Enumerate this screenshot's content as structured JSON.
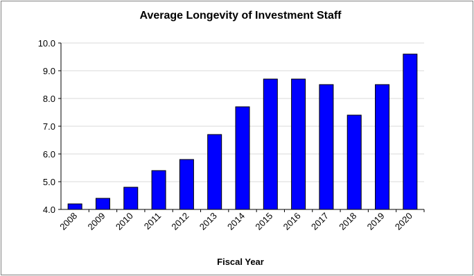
{
  "chart_data": {
    "type": "bar",
    "title": "Average Longevity of Investment Staff",
    "xlabel": "Fiscal Year",
    "ylabel": "",
    "categories": [
      "2008",
      "2009",
      "2010",
      "2011",
      "2012",
      "2013",
      "2014",
      "2015",
      "2016",
      "2017",
      "2018",
      "2019",
      "2020"
    ],
    "values": [
      4.2,
      4.4,
      4.8,
      5.4,
      5.8,
      6.7,
      7.7,
      8.7,
      8.7,
      8.5,
      7.4,
      8.5,
      9.6
    ],
    "ylim": [
      4.0,
      10.0
    ],
    "yticks": [
      "4.0",
      "5.0",
      "6.0",
      "7.0",
      "8.0",
      "9.0",
      "10.0"
    ],
    "grid": true,
    "legend": "none",
    "bar_color": "#0000ff",
    "bar_edge_color": "#000000",
    "grid_color": "#d9d9d9"
  }
}
